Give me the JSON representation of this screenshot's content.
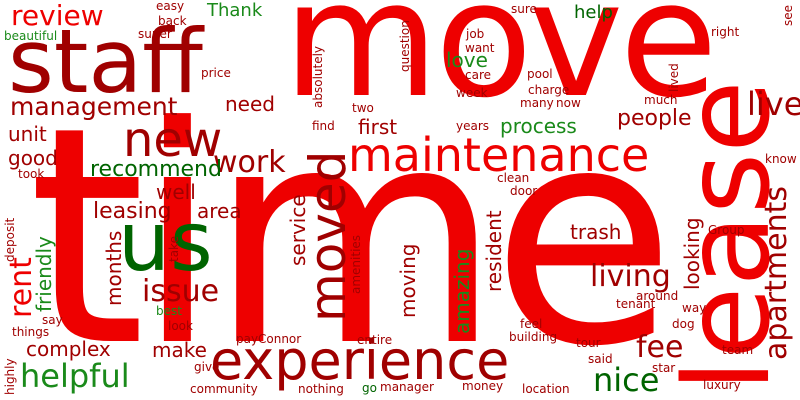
{
  "colors": {
    "red": "#ee0000",
    "dark_red": "#a00000",
    "green": "#1a8a1a",
    "dark_green": "#006400",
    "background": "#ffffff"
  },
  "words": {
    "time": "time",
    "move": "move",
    "lease": "lease",
    "staff": "staff",
    "experience": "experience",
    "maintenance": "maintenance",
    "us": "us",
    "new": "new",
    "moved": "moved",
    "management": "management",
    "review": "review",
    "live": "live",
    "apartments": "apartments",
    "living": "living",
    "work": "work",
    "helpful": "helpful",
    "nice": "nice",
    "fee": "fee",
    "issue": "issue",
    "rent": "rent",
    "recommend": "recommend",
    "leasing": "leasing",
    "people": "people",
    "process": "process",
    "first": "first",
    "need": "need",
    "good": "good",
    "unit": "unit",
    "well": "well",
    "area": "area",
    "make": "make",
    "complex": "complex",
    "trash": "trash",
    "moving": "moving",
    "amazing": "amazing",
    "friendly": "friendly",
    "months": "months",
    "service": "service",
    "looking": "looking",
    "resident": "resident",
    "love": "love",
    "help": "help",
    "thank": "Thank",
    "easy": "easy",
    "back": "back",
    "super": "super",
    "beautiful": "beautiful",
    "price": "price",
    "absolutely": "absolutely",
    "question": "question",
    "job": "job",
    "want": "want",
    "care": "care",
    "pool": "pool",
    "week": "week",
    "charge": "charge",
    "many": "many",
    "now": "now",
    "sure": "sure",
    "right": "right",
    "see": "see",
    "lived": "lived",
    "much": "much",
    "know": "know",
    "group": "Group",
    "way": "way",
    "dog": "dog",
    "around": "around",
    "tenant": "tenant",
    "team": "team",
    "luxury": "luxury",
    "star": "star",
    "said": "said",
    "tour": "tour",
    "location": "location",
    "money": "money",
    "manager": "manager",
    "go": "go",
    "nothing": "nothing",
    "community": "community",
    "give": "give",
    "pay": "pay",
    "connor": "Connor",
    "entire": "entire",
    "building": "building",
    "feel": "feel",
    "look": "look",
    "best": "best",
    "say": "say",
    "things": "things",
    "highly": "highly",
    "deposit": "deposit",
    "took": "took",
    "take": "take",
    "amenities": "amenities",
    "clean": "clean",
    "door": "door",
    "find": "find",
    "two": "two",
    "years": "years"
  }
}
